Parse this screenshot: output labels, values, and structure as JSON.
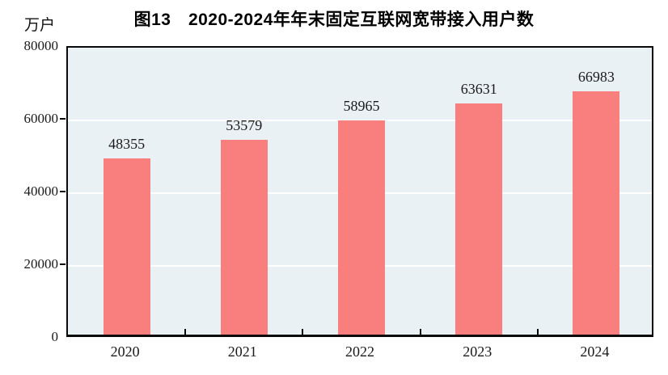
{
  "figure": {
    "title": "图13　2020-2024年年末固定互联网宽带接入用户数",
    "unit_label": "万户"
  },
  "chart_data": {
    "type": "bar",
    "title": "图13　2020-2024年年末固定互联网宽带接入用户数",
    "categories": [
      "2020",
      "2021",
      "2022",
      "2023",
      "2024"
    ],
    "values": [
      48355,
      53579,
      58965,
      63631,
      66983
    ],
    "value_labels": [
      "48355",
      "53579",
      "58965",
      "63631",
      "66983"
    ],
    "xlabel": "",
    "ylabel": "万户",
    "ylim": [
      0,
      80000
    ],
    "y_ticks": [
      0,
      20000,
      40000,
      60000,
      80000
    ],
    "y_tick_labels": [
      "0",
      "20000",
      "40000",
      "60000",
      "80000"
    ],
    "grid": true,
    "legend": "none",
    "colors": {
      "bar": "#F97E7E",
      "plot_background": "#E9F1F5",
      "gridline": "#FFFFFF",
      "axis": "#0A0A0A",
      "text": "#1A1A1A"
    }
  }
}
